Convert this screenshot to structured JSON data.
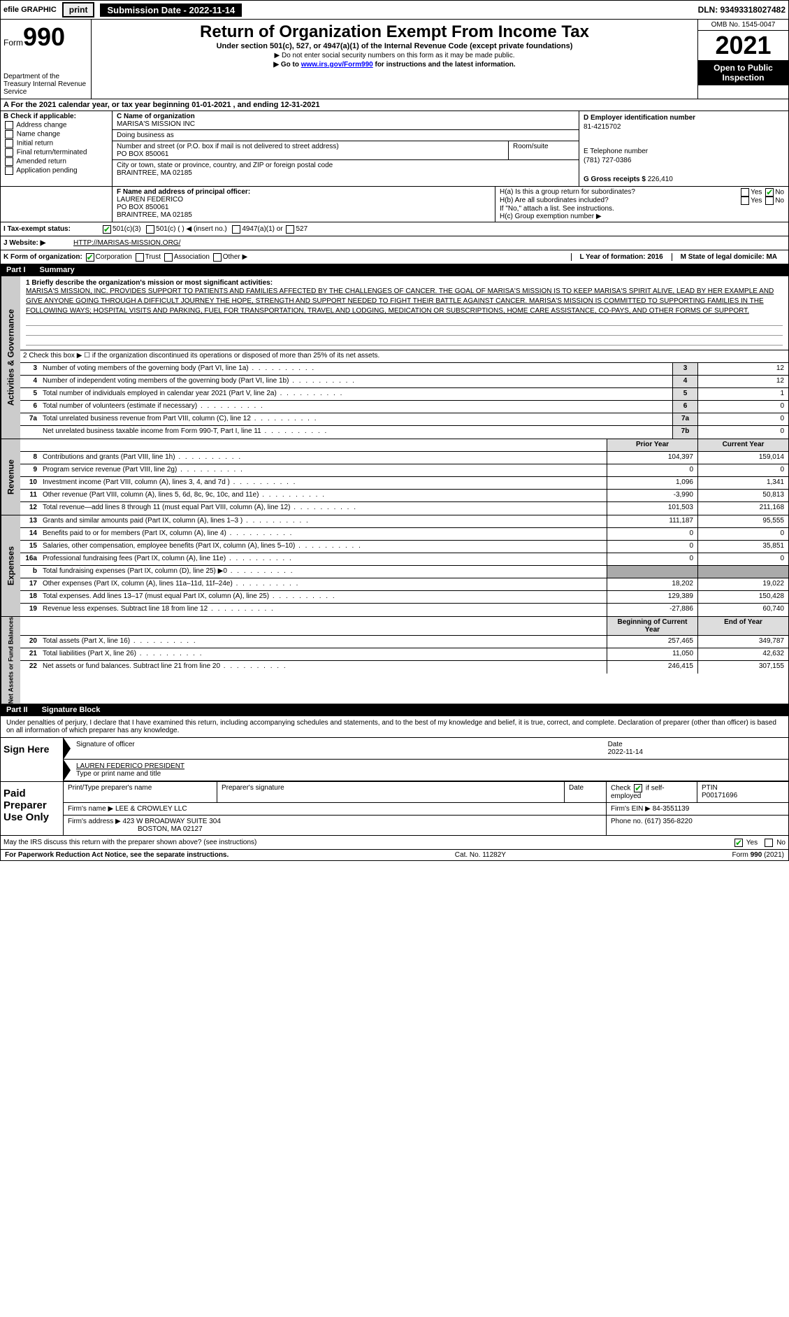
{
  "topbar": {
    "efile": "efile GRAPHIC",
    "print": "print",
    "sub_label": "Submission Date - 2022-11-14",
    "dln": "DLN: 93493318027482"
  },
  "header": {
    "form_word": "Form",
    "form_num": "990",
    "title": "Return of Organization Exempt From Income Tax",
    "sub1": "Under section 501(c), 527, or 4947(a)(1) of the Internal Revenue Code (except private foundations)",
    "sub2": "▶ Do not enter social security numbers on this form as it may be made public.",
    "sub3_pre": "▶ Go to ",
    "sub3_link": "www.irs.gov/Form990",
    "sub3_post": " for instructions and the latest information.",
    "omb": "OMB No. 1545-0047",
    "year": "2021",
    "open": "Open to Public Inspection",
    "dept": "Department of the Treasury Internal Revenue Service"
  },
  "rowA": "A  For the 2021 calendar year, or tax year beginning 01-01-2021   , and ending 12-31-2021",
  "sectionB": {
    "title": "B Check if applicable:",
    "items": [
      "Address change",
      "Name change",
      "Initial return",
      "Final return/terminated",
      "Amended return",
      "Application pending"
    ]
  },
  "sectionC": {
    "label_name": "C Name of organization",
    "org": "MARISA'S MISSION INC",
    "dba_label": "Doing business as",
    "dba": "",
    "addr_label": "Number and street (or P.O. box if mail is not delivered to street address)",
    "room_label": "Room/suite",
    "addr": "PO BOX 850061",
    "city_label": "City or town, state or province, country, and ZIP or foreign postal code",
    "city": "BRAINTREE, MA  02185"
  },
  "sectionD": {
    "ein_label": "D Employer identification number",
    "ein": "81-4215702",
    "phone_label": "E Telephone number",
    "phone": "(781) 727-0386",
    "gross_label": "G Gross receipts $",
    "gross": "226,410"
  },
  "sectionF": {
    "label": "F  Name and address of principal officer:",
    "name": "LAUREN FEDERICO",
    "addr1": "PO BOX 850061",
    "addr2": "BRAINTREE, MA  02185"
  },
  "sectionH": {
    "ha": "H(a)  Is this a group return for subordinates?",
    "hb": "H(b)  Are all subordinates included?",
    "hb_note": "If \"No,\" attach a list. See instructions.",
    "hc": "H(c)  Group exemption number ▶"
  },
  "rowI": {
    "label": "I   Tax-exempt status:",
    "opts": [
      "501(c)(3)",
      "501(c) (  ) ◀ (insert no.)",
      "4947(a)(1) or",
      "527"
    ]
  },
  "rowJ": {
    "label": "J   Website: ▶",
    "val": "HTTP://MARISAS-MISSION.ORG/"
  },
  "rowK": {
    "label": "K Form of organization:",
    "opts": [
      "Corporation",
      "Trust",
      "Association",
      "Other ▶"
    ],
    "L": "L Year of formation: 2016",
    "M": "M State of legal domicile: MA"
  },
  "part1": {
    "num": "Part I",
    "title": "Summary"
  },
  "mission": {
    "label": "1  Briefly describe the organization's mission or most significant activities:",
    "text": "MARISA'S MISSION, INC. PROVIDES SUPPORT TO PATIENTS AND FAMILIES AFFECTED BY THE CHALLENGES OF CANCER. THE GOAL OF MARISA'S MISSION IS TO KEEP MARISA'S SPIRIT ALIVE, LEAD BY HER EXAMPLE AND GIVE ANYONE GOING THROUGH A DIFFICULT JOURNEY THE HOPE, STRENGTH AND SUPPORT NEEDED TO FIGHT THEIR BATTLE AGAINST CANCER. MARISA'S MISSION IS COMMITTED TO SUPPORTING FAMILIES IN THE FOLLOWING WAYS; HOSPITAL VISITS AND PARKING, FUEL FOR TRANSPORTATION, TRAVEL AND LODGING, MEDICATION OR SUBSCRIPTIONS, HOME CARE ASSISTANCE, CO-PAYS, AND OTHER FORMS OF SUPPORT."
  },
  "line2": "2  Check this box ▶ ☐ if the organization discontinued its operations or disposed of more than 25% of its net assets.",
  "governance_rows": [
    {
      "n": "3",
      "d": "Number of voting members of the governing body (Part VI, line 1a)",
      "box": "3",
      "v": "12"
    },
    {
      "n": "4",
      "d": "Number of independent voting members of the governing body (Part VI, line 1b)",
      "box": "4",
      "v": "12"
    },
    {
      "n": "5",
      "d": "Total number of individuals employed in calendar year 2021 (Part V, line 2a)",
      "box": "5",
      "v": "1"
    },
    {
      "n": "6",
      "d": "Total number of volunteers (estimate if necessary)",
      "box": "6",
      "v": "0"
    },
    {
      "n": "7a",
      "d": "Total unrelated business revenue from Part VIII, column (C), line 12",
      "box": "7a",
      "v": "0"
    },
    {
      "n": "",
      "d": "Net unrelated business taxable income from Form 990-T, Part I, line 11",
      "box": "7b",
      "v": "0"
    }
  ],
  "two_col_header": {
    "prior": "Prior Year",
    "current": "Current Year"
  },
  "revenue_rows": [
    {
      "n": "8",
      "d": "Contributions and grants (Part VIII, line 1h)",
      "p": "104,397",
      "c": "159,014"
    },
    {
      "n": "9",
      "d": "Program service revenue (Part VIII, line 2g)",
      "p": "0",
      "c": "0"
    },
    {
      "n": "10",
      "d": "Investment income (Part VIII, column (A), lines 3, 4, and 7d )",
      "p": "1,096",
      "c": "1,341"
    },
    {
      "n": "11",
      "d": "Other revenue (Part VIII, column (A), lines 5, 6d, 8c, 9c, 10c, and 11e)",
      "p": "-3,990",
      "c": "50,813"
    },
    {
      "n": "12",
      "d": "Total revenue—add lines 8 through 11 (must equal Part VIII, column (A), line 12)",
      "p": "101,503",
      "c": "211,168"
    }
  ],
  "expense_rows": [
    {
      "n": "13",
      "d": "Grants and similar amounts paid (Part IX, column (A), lines 1–3 )",
      "p": "111,187",
      "c": "95,555"
    },
    {
      "n": "14",
      "d": "Benefits paid to or for members (Part IX, column (A), line 4)",
      "p": "0",
      "c": "0"
    },
    {
      "n": "15",
      "d": "Salaries, other compensation, employee benefits (Part IX, column (A), lines 5–10)",
      "p": "0",
      "c": "35,851"
    },
    {
      "n": "16a",
      "d": "Professional fundraising fees (Part IX, column (A), line 11e)",
      "p": "0",
      "c": "0"
    },
    {
      "n": "b",
      "d": "Total fundraising expenses (Part IX, column (D), line 25) ▶0",
      "p": "GRAY",
      "c": "GRAY"
    },
    {
      "n": "17",
      "d": "Other expenses (Part IX, column (A), lines 11a–11d, 11f–24e)",
      "p": "18,202",
      "c": "19,022"
    },
    {
      "n": "18",
      "d": "Total expenses. Add lines 13–17 (must equal Part IX, column (A), line 25)",
      "p": "129,389",
      "c": "150,428"
    },
    {
      "n": "19",
      "d": "Revenue less expenses. Subtract line 18 from line 12",
      "p": "-27,886",
      "c": "60,740"
    }
  ],
  "net_header": {
    "b": "Beginning of Current Year",
    "e": "End of Year"
  },
  "net_rows": [
    {
      "n": "20",
      "d": "Total assets (Part X, line 16)",
      "p": "257,465",
      "c": "349,787"
    },
    {
      "n": "21",
      "d": "Total liabilities (Part X, line 26)",
      "p": "11,050",
      "c": "42,632"
    },
    {
      "n": "22",
      "d": "Net assets or fund balances. Subtract line 21 from line 20",
      "p": "246,415",
      "c": "307,155"
    }
  ],
  "part2": {
    "num": "Part II",
    "title": "Signature Block"
  },
  "penalty": "Under penalties of perjury, I declare that I have examined this return, including accompanying schedules and statements, and to the best of my knowledge and belief, it is true, correct, and complete. Declaration of preparer (other than officer) is based on all information of which preparer has any knowledge.",
  "sign": {
    "here": "Sign Here",
    "sig_label": "Signature of officer",
    "date_label": "Date",
    "date": "2022-11-14",
    "name": "LAUREN FEDERICO  PRESIDENT",
    "name_label": "Type or print name and title"
  },
  "paid": {
    "title": "Paid Preparer Use Only",
    "h1": "Print/Type preparer's name",
    "h2": "Preparer's signature",
    "h3": "Date",
    "h4_pre": "Check",
    "h4_post": "if self-employed",
    "ptin_label": "PTIN",
    "ptin": "P00171696",
    "firm_label": "Firm's name    ▶",
    "firm": "LEE & CROWLEY LLC",
    "ein_label": "Firm's EIN ▶",
    "ein": "84-3551139",
    "addr_label": "Firm's address ▶",
    "addr1": "423 W BROADWAY SUITE 304",
    "addr2": "BOSTON, MA  02127",
    "phone_label": "Phone no.",
    "phone": "(617) 356-8220"
  },
  "discuss": "May the IRS discuss this return with the preparer shown above? (see instructions)",
  "footer": {
    "left": "For Paperwork Reduction Act Notice, see the separate instructions.",
    "mid": "Cat. No. 11282Y",
    "right": "Form 990 (2021)"
  },
  "sidebars": {
    "gov": "Activities & Governance",
    "rev": "Revenue",
    "exp": "Expenses",
    "net": "Net Assets or Fund Balances"
  },
  "yesno": {
    "yes": "Yes",
    "no": "No"
  }
}
